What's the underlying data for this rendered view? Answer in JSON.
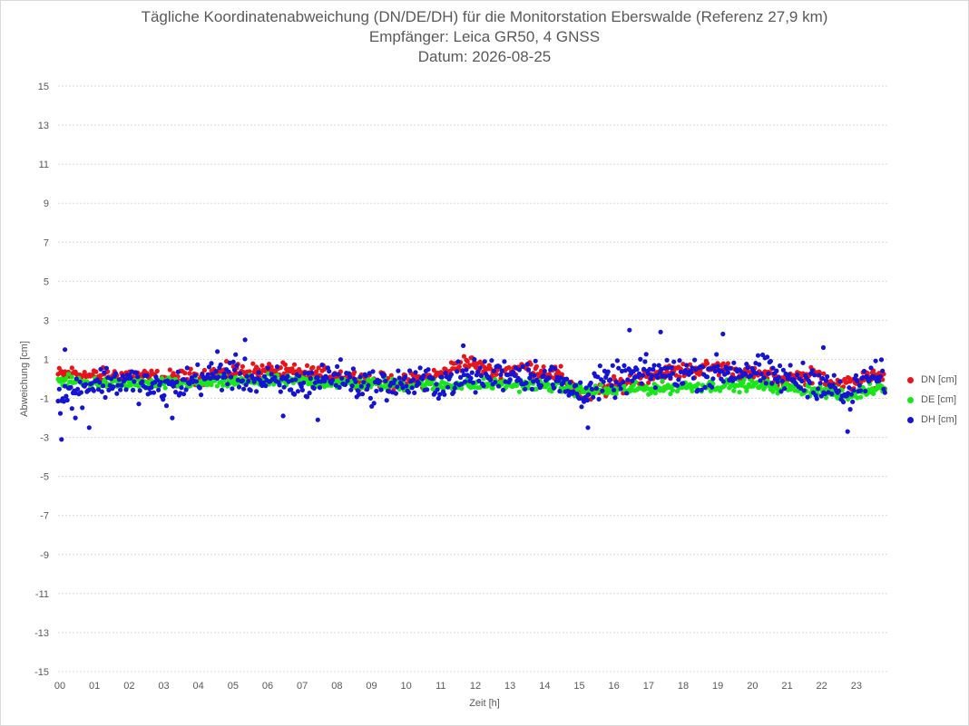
{
  "chart_data": {
    "type": "scatter",
    "title": "Tägliche Koordinatenabweichung (DN/DE/DH) für die Monitorstation Eberswalde (Referenz 27,9 km)",
    "subtitle": "Empfänger: Leica GR50, 4 GNSS",
    "date_line": "Datum: 2026-08-25",
    "xlabel": "Zeit [h]",
    "ylabel": "Abweichung [cm]",
    "xlim": [
      0,
      24
    ],
    "ylim": [
      -15,
      15
    ],
    "x_ticks": [
      "00",
      "01",
      "02",
      "03",
      "04",
      "05",
      "06",
      "07",
      "08",
      "09",
      "10",
      "11",
      "12",
      "13",
      "14",
      "15",
      "16",
      "17",
      "18",
      "19",
      "20",
      "21",
      "22",
      "23"
    ],
    "y_ticks": [
      15,
      13,
      11,
      9,
      7,
      5,
      3,
      1,
      -1,
      -3,
      -5,
      -7,
      -9,
      -11,
      -13,
      -15
    ],
    "grid": "horizontal dotted",
    "legend_position": "right",
    "sample_interval_h": 0.0333,
    "series": [
      {
        "name": "DN [cm]",
        "color": "#e8141b",
        "profile": [
          [
            0,
            0.2
          ],
          [
            0.5,
            0.3
          ],
          [
            1,
            0.1
          ],
          [
            2,
            0.2
          ],
          [
            3,
            0.0
          ],
          [
            4,
            0.1
          ],
          [
            5,
            0.4
          ],
          [
            6,
            0.4
          ],
          [
            7,
            0.3
          ],
          [
            8,
            0.2
          ],
          [
            9,
            -0.1
          ],
          [
            10,
            -0.2
          ],
          [
            11,
            0.2
          ],
          [
            11.8,
            0.9
          ],
          [
            12.5,
            0.3
          ],
          [
            13.5,
            0.6
          ],
          [
            14.5,
            0.2
          ],
          [
            15.2,
            -0.9
          ],
          [
            16,
            -0.4
          ],
          [
            17,
            0.2
          ],
          [
            18,
            0.4
          ],
          [
            19,
            0.6
          ],
          [
            20,
            0.2
          ],
          [
            21,
            0.0
          ],
          [
            22,
            0.2
          ],
          [
            22.6,
            -0.4
          ],
          [
            23.2,
            0.0
          ],
          [
            23.9,
            0.0
          ]
        ],
        "spread": 0.35
      },
      {
        "name": "DE [cm]",
        "color": "#19e619",
        "profile": [
          [
            0,
            -0.1
          ],
          [
            2,
            -0.3
          ],
          [
            4,
            -0.2
          ],
          [
            6,
            -0.1
          ],
          [
            8,
            -0.2
          ],
          [
            10,
            -0.3
          ],
          [
            12,
            -0.3
          ],
          [
            14,
            -0.3
          ],
          [
            15.2,
            -0.6
          ],
          [
            16,
            -0.6
          ],
          [
            18,
            -0.4
          ],
          [
            20,
            -0.3
          ],
          [
            22,
            -0.6
          ],
          [
            22.8,
            -0.9
          ],
          [
            23.9,
            -0.3
          ]
        ],
        "spread": 0.25
      },
      {
        "name": "DH [cm]",
        "color": "#1414d2",
        "profile": [
          [
            0,
            -1.0
          ],
          [
            0.3,
            -0.8
          ],
          [
            1,
            -0.2
          ],
          [
            2,
            -0.1
          ],
          [
            3,
            -0.6
          ],
          [
            4,
            0.0
          ],
          [
            5,
            0.3
          ],
          [
            6,
            -0.2
          ],
          [
            7,
            -0.3
          ],
          [
            8,
            0.2
          ],
          [
            9,
            -0.4
          ],
          [
            10,
            -0.2
          ],
          [
            11,
            -0.2
          ],
          [
            12,
            0.1
          ],
          [
            13,
            0.3
          ],
          [
            14,
            0.2
          ],
          [
            15,
            -0.7
          ],
          [
            16,
            -0.1
          ],
          [
            17,
            0.3
          ],
          [
            18,
            0.3
          ],
          [
            19,
            0.3
          ],
          [
            20,
            0.5
          ],
          [
            21,
            0.0
          ],
          [
            22,
            -0.1
          ],
          [
            22.8,
            -1.0
          ],
          [
            23.4,
            0.1
          ],
          [
            23.9,
            0.0
          ]
        ],
        "spread": 0.7,
        "outliers": [
          [
            0.1,
            -3.1
          ],
          [
            0.2,
            1.5
          ],
          [
            0.9,
            -2.5
          ],
          [
            4.6,
            1.4
          ],
          [
            5.4,
            2.0
          ],
          [
            6.5,
            -1.9
          ],
          [
            7.5,
            -2.1
          ],
          [
            11.7,
            1.7
          ],
          [
            15.3,
            -2.5
          ],
          [
            16.5,
            2.5
          ],
          [
            17.4,
            2.4
          ],
          [
            19.2,
            2.3
          ],
          [
            22.1,
            1.6
          ],
          [
            22.8,
            -2.7
          ],
          [
            0.5,
            -2.0
          ],
          [
            3.3,
            -2.0
          ]
        ]
      }
    ]
  }
}
